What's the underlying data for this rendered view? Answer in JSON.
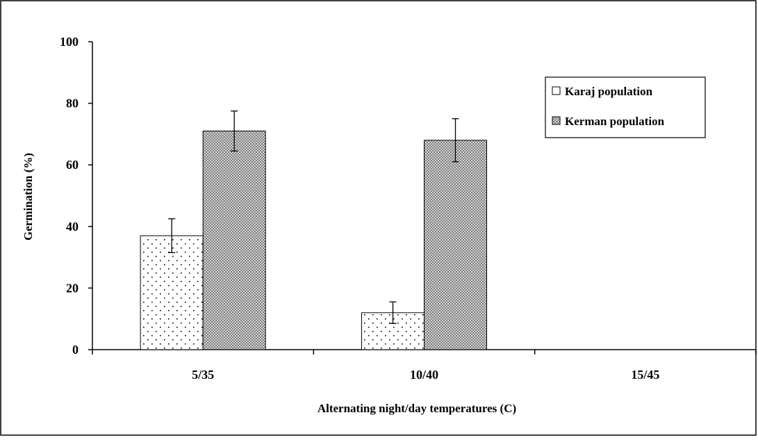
{
  "chart_data": {
    "type": "bar",
    "title": "",
    "xlabel": "Alternating night/day temperatures (C)",
    "ylabel": "Germination (%)",
    "categories": [
      "5/35",
      "10/40",
      "15/45"
    ],
    "ylim": [
      0,
      100
    ],
    "yticks": [
      0,
      20,
      40,
      60,
      80,
      100
    ],
    "grid": false,
    "legend_position": "top-right",
    "series": [
      {
        "name": "Karaj population",
        "values": [
          37,
          12,
          0
        ],
        "errors": [
          5.5,
          3.5,
          0
        ],
        "pattern": "dotted",
        "color": "#ffffff"
      },
      {
        "name": "Kerman population",
        "values": [
          71,
          68,
          0
        ],
        "errors": [
          6.5,
          7,
          0
        ],
        "pattern": "crosshatch",
        "color": "#8a8a8a"
      }
    ]
  }
}
